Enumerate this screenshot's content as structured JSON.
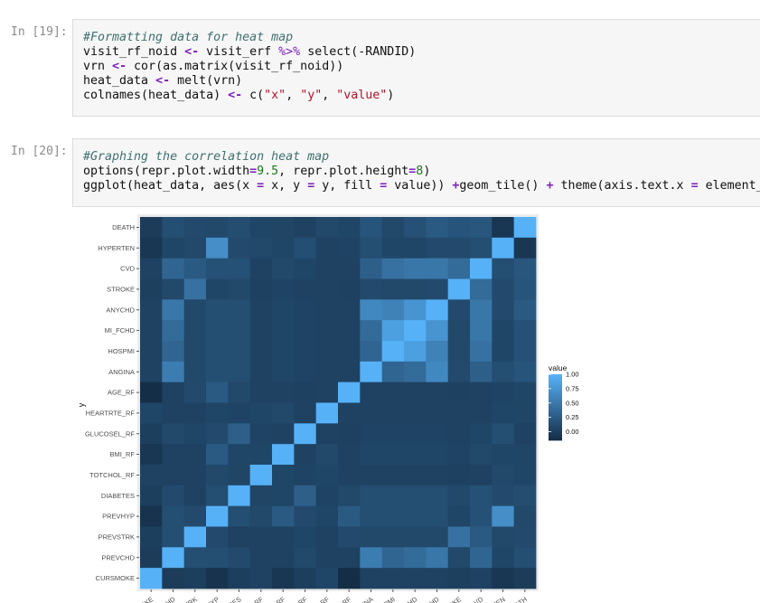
{
  "cells": [
    {
      "prompt": "In [19]:",
      "lines": [
        [
          {
            "t": "#Formatting data for heat map",
            "c": "cm"
          }
        ],
        [
          {
            "t": "visit_rf_noid ",
            "c": ""
          },
          {
            "t": "<-",
            "c": "op"
          },
          {
            "t": " visit_erf ",
            "c": ""
          },
          {
            "t": "%>%",
            "c": "pl"
          },
          {
            "t": " select(-RANDID)",
            "c": ""
          }
        ],
        [
          {
            "t": "vrn ",
            "c": ""
          },
          {
            "t": "<-",
            "c": "op"
          },
          {
            "t": " cor(as.matrix(visit_rf_noid))",
            "c": ""
          }
        ],
        [
          {
            "t": "heat_data ",
            "c": ""
          },
          {
            "t": "<-",
            "c": "op"
          },
          {
            "t": " melt(vrn)",
            "c": ""
          }
        ],
        [
          {
            "t": "colnames(heat_data) ",
            "c": ""
          },
          {
            "t": "<-",
            "c": "op"
          },
          {
            "t": " c(",
            "c": ""
          },
          {
            "t": "\"x\"",
            "c": "st"
          },
          {
            "t": ", ",
            "c": ""
          },
          {
            "t": "\"y\"",
            "c": "st"
          },
          {
            "t": ", ",
            "c": ""
          },
          {
            "t": "\"value\"",
            "c": "st"
          },
          {
            "t": ")",
            "c": ""
          }
        ]
      ]
    },
    {
      "prompt": "In [20]:",
      "lines": [
        [
          {
            "t": "#Graphing the correlation heat map",
            "c": "cm"
          }
        ],
        [
          {
            "t": "options(repr.plot.width",
            "c": ""
          },
          {
            "t": "=",
            "c": "op"
          },
          {
            "t": "9.5",
            "c": "nm"
          },
          {
            "t": ", repr.plot.height",
            "c": ""
          },
          {
            "t": "=",
            "c": "op"
          },
          {
            "t": "8",
            "c": "nm"
          },
          {
            "t": ")",
            "c": ""
          }
        ],
        [
          {
            "t": "ggplot(heat_data, aes(x ",
            "c": ""
          },
          {
            "t": "=",
            "c": "op"
          },
          {
            "t": " x, y ",
            "c": ""
          },
          {
            "t": "=",
            "c": "op"
          },
          {
            "t": " y, fill ",
            "c": ""
          },
          {
            "t": "=",
            "c": "op"
          },
          {
            "t": " value)) ",
            "c": ""
          },
          {
            "t": "+",
            "c": "op"
          },
          {
            "t": "geom_tile() ",
            "c": ""
          },
          {
            "t": "+",
            "c": "op"
          },
          {
            "t": " theme(axis.text.x ",
            "c": ""
          },
          {
            "t": "=",
            "c": "op"
          },
          {
            "t": " element_te",
            "c": ""
          }
        ]
      ]
    }
  ],
  "chart_data": {
    "type": "heatmap",
    "y_axis_title": "y",
    "y_labels_top_to_bottom": [
      "DEATH",
      "HYPERTEN",
      "CVD",
      "STROKE",
      "ANYCHD",
      "MI_FCHD",
      "HOSPMI",
      "ANGINA",
      "AGE_RF",
      "HEARTRTE_RF",
      "GLUCOSEL_RF",
      "BMI_RF",
      "TOTCHOL_RF",
      "DIABETES",
      "PREVHYP",
      "PREVSTRK",
      "PREVCHD",
      "CURSMOKE"
    ],
    "x_labels_visible": [
      "OKE",
      "HD",
      "TRK",
      "HYP",
      "TES",
      "RF",
      "RF",
      "RF",
      "RF",
      ".RF",
      "INA",
      "PMI",
      "CHD",
      "CHD",
      "OKE",
      "VD",
      "TEN",
      "ATH"
    ],
    "legend": {
      "title": "value",
      "ticks": [
        "1.00",
        "0.75",
        "0.50",
        "0.25",
        "0.00"
      ],
      "tick_values": [
        1.0,
        0.75,
        0.5,
        0.25,
        0.0
      ],
      "min": -0.15,
      "max": 1.0,
      "color_low": "#132b43",
      "color_high": "#56b1f7"
    },
    "matrix_top_to_bottom": [
      [
        0.0,
        0.15,
        0.12,
        0.1,
        0.14,
        0.08,
        0.07,
        0.05,
        0.1,
        0.08,
        0.2,
        0.1,
        0.17,
        0.25,
        0.2,
        0.22,
        -0.05,
        1.0
      ],
      [
        -0.05,
        0.08,
        0.1,
        0.7,
        0.12,
        0.1,
        0.08,
        0.15,
        0.05,
        0.06,
        0.15,
        0.08,
        0.08,
        0.12,
        0.12,
        0.15,
        1.0,
        -0.05
      ],
      [
        0.05,
        0.35,
        0.25,
        0.18,
        0.18,
        0.05,
        0.1,
        0.08,
        0.05,
        0.05,
        0.3,
        0.45,
        0.5,
        0.5,
        0.4,
        1.0,
        0.15,
        0.22
      ],
      [
        0.03,
        0.1,
        0.45,
        0.08,
        0.1,
        0.04,
        0.06,
        0.05,
        0.05,
        0.04,
        0.12,
        0.1,
        0.1,
        0.12,
        1.0,
        0.4,
        0.12,
        0.2
      ],
      [
        0.05,
        0.5,
        0.1,
        0.15,
        0.15,
        0.05,
        0.08,
        0.06,
        0.05,
        0.05,
        0.65,
        0.6,
        0.75,
        1.0,
        0.12,
        0.5,
        0.12,
        0.25
      ],
      [
        0.05,
        0.4,
        0.1,
        0.15,
        0.15,
        0.05,
        0.08,
        0.06,
        0.05,
        0.05,
        0.4,
        0.85,
        1.0,
        0.75,
        0.1,
        0.5,
        0.08,
        0.17
      ],
      [
        0.05,
        0.35,
        0.1,
        0.15,
        0.15,
        0.05,
        0.08,
        0.06,
        0.05,
        0.05,
        0.35,
        1.0,
        0.85,
        0.6,
        0.1,
        0.45,
        0.08,
        0.17
      ],
      [
        0.05,
        0.55,
        0.1,
        0.15,
        0.15,
        0.05,
        0.08,
        0.06,
        0.05,
        0.05,
        1.0,
        0.35,
        0.4,
        0.65,
        0.12,
        0.3,
        0.15,
        0.2
      ],
      [
        -0.12,
        0.05,
        0.12,
        0.25,
        0.1,
        0.05,
        0.05,
        0.04,
        0.05,
        1.0,
        0.05,
        0.05,
        0.05,
        0.05,
        0.04,
        0.05,
        0.06,
        0.08
      ],
      [
        0.08,
        0.05,
        0.05,
        0.08,
        0.06,
        0.08,
        0.1,
        0.05,
        1.0,
        0.05,
        0.05,
        0.05,
        0.05,
        0.05,
        0.05,
        0.05,
        0.08,
        0.07
      ],
      [
        0.02,
        0.1,
        0.08,
        0.12,
        0.3,
        0.06,
        0.05,
        1.0,
        0.05,
        0.04,
        0.06,
        0.06,
        0.06,
        0.06,
        0.05,
        0.08,
        0.15,
        0.05
      ],
      [
        -0.05,
        0.05,
        0.05,
        0.25,
        0.08,
        0.08,
        1.0,
        0.05,
        0.1,
        0.05,
        0.08,
        0.08,
        0.08,
        0.08,
        0.06,
        0.1,
        0.08,
        0.07
      ],
      [
        0.05,
        0.05,
        0.05,
        0.1,
        0.07,
        1.0,
        0.08,
        0.06,
        0.08,
        0.05,
        0.05,
        0.05,
        0.05,
        0.05,
        0.04,
        0.05,
        0.1,
        0.08
      ],
      [
        0.02,
        0.12,
        0.05,
        0.15,
        1.0,
        0.07,
        0.08,
        0.3,
        0.06,
        0.1,
        0.15,
        0.15,
        0.15,
        0.15,
        0.1,
        0.18,
        0.12,
        0.14
      ],
      [
        -0.08,
        0.15,
        0.12,
        1.0,
        0.15,
        0.1,
        0.25,
        0.12,
        0.08,
        0.25,
        0.15,
        0.15,
        0.15,
        0.15,
        0.08,
        0.18,
        0.7,
        0.1
      ],
      [
        0.02,
        0.15,
        1.0,
        0.12,
        0.05,
        0.05,
        0.05,
        0.08,
        0.05,
        0.12,
        0.1,
        0.1,
        0.1,
        0.1,
        0.45,
        0.25,
        0.1,
        0.12
      ],
      [
        0.0,
        1.0,
        0.15,
        0.15,
        0.12,
        0.05,
        0.05,
        0.1,
        0.05,
        0.05,
        0.55,
        0.35,
        0.4,
        0.5,
        0.1,
        0.35,
        0.08,
        0.15
      ],
      [
        1.0,
        0.0,
        0.02,
        -0.08,
        0.02,
        0.05,
        -0.05,
        0.02,
        0.08,
        -0.12,
        0.05,
        0.05,
        0.05,
        0.05,
        0.03,
        0.05,
        -0.05,
        0.0
      ]
    ]
  }
}
